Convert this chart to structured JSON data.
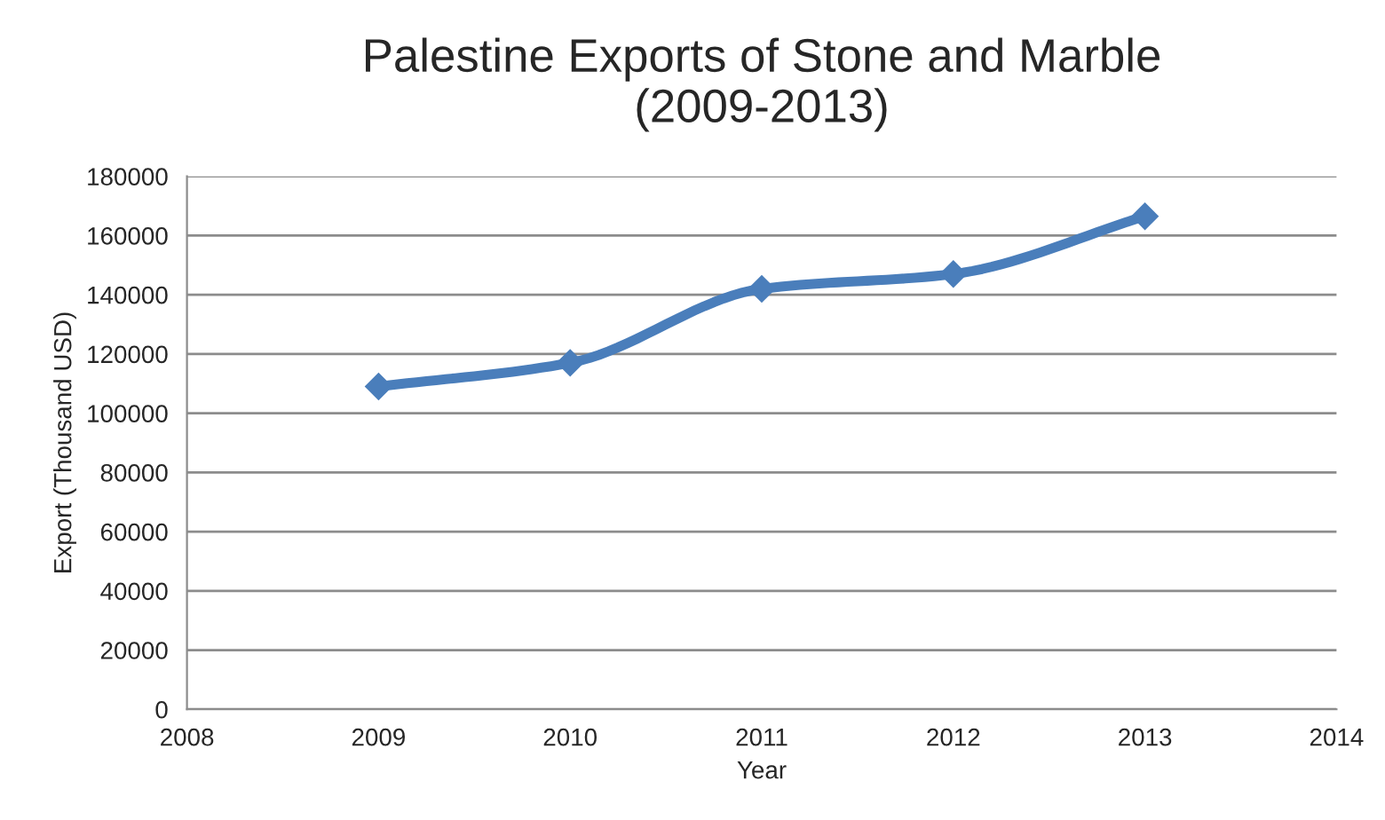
{
  "chart_data": {
    "type": "line",
    "title": "Palestine Exports of Stone and Marble\n(2009-2013)",
    "xlabel": "Year",
    "ylabel": "Export (Thousand USD)",
    "x": [
      2009,
      2010,
      2011,
      2012,
      2013
    ],
    "series": [
      {
        "color": "#4a7ebb",
        "values": [
          109000,
          117000,
          142000,
          147000,
          166500
        ]
      }
    ],
    "xlim": [
      2008,
      2014
    ],
    "xticks": [
      2008,
      2009,
      2010,
      2011,
      2012,
      2013,
      2014
    ],
    "ylim": [
      0,
      180000
    ],
    "yticks": [
      0,
      20000,
      40000,
      60000,
      80000,
      100000,
      120000,
      140000,
      160000,
      180000
    ],
    "grid": "y",
    "marker": "diamond",
    "line_style": "solid",
    "legend": false
  }
}
